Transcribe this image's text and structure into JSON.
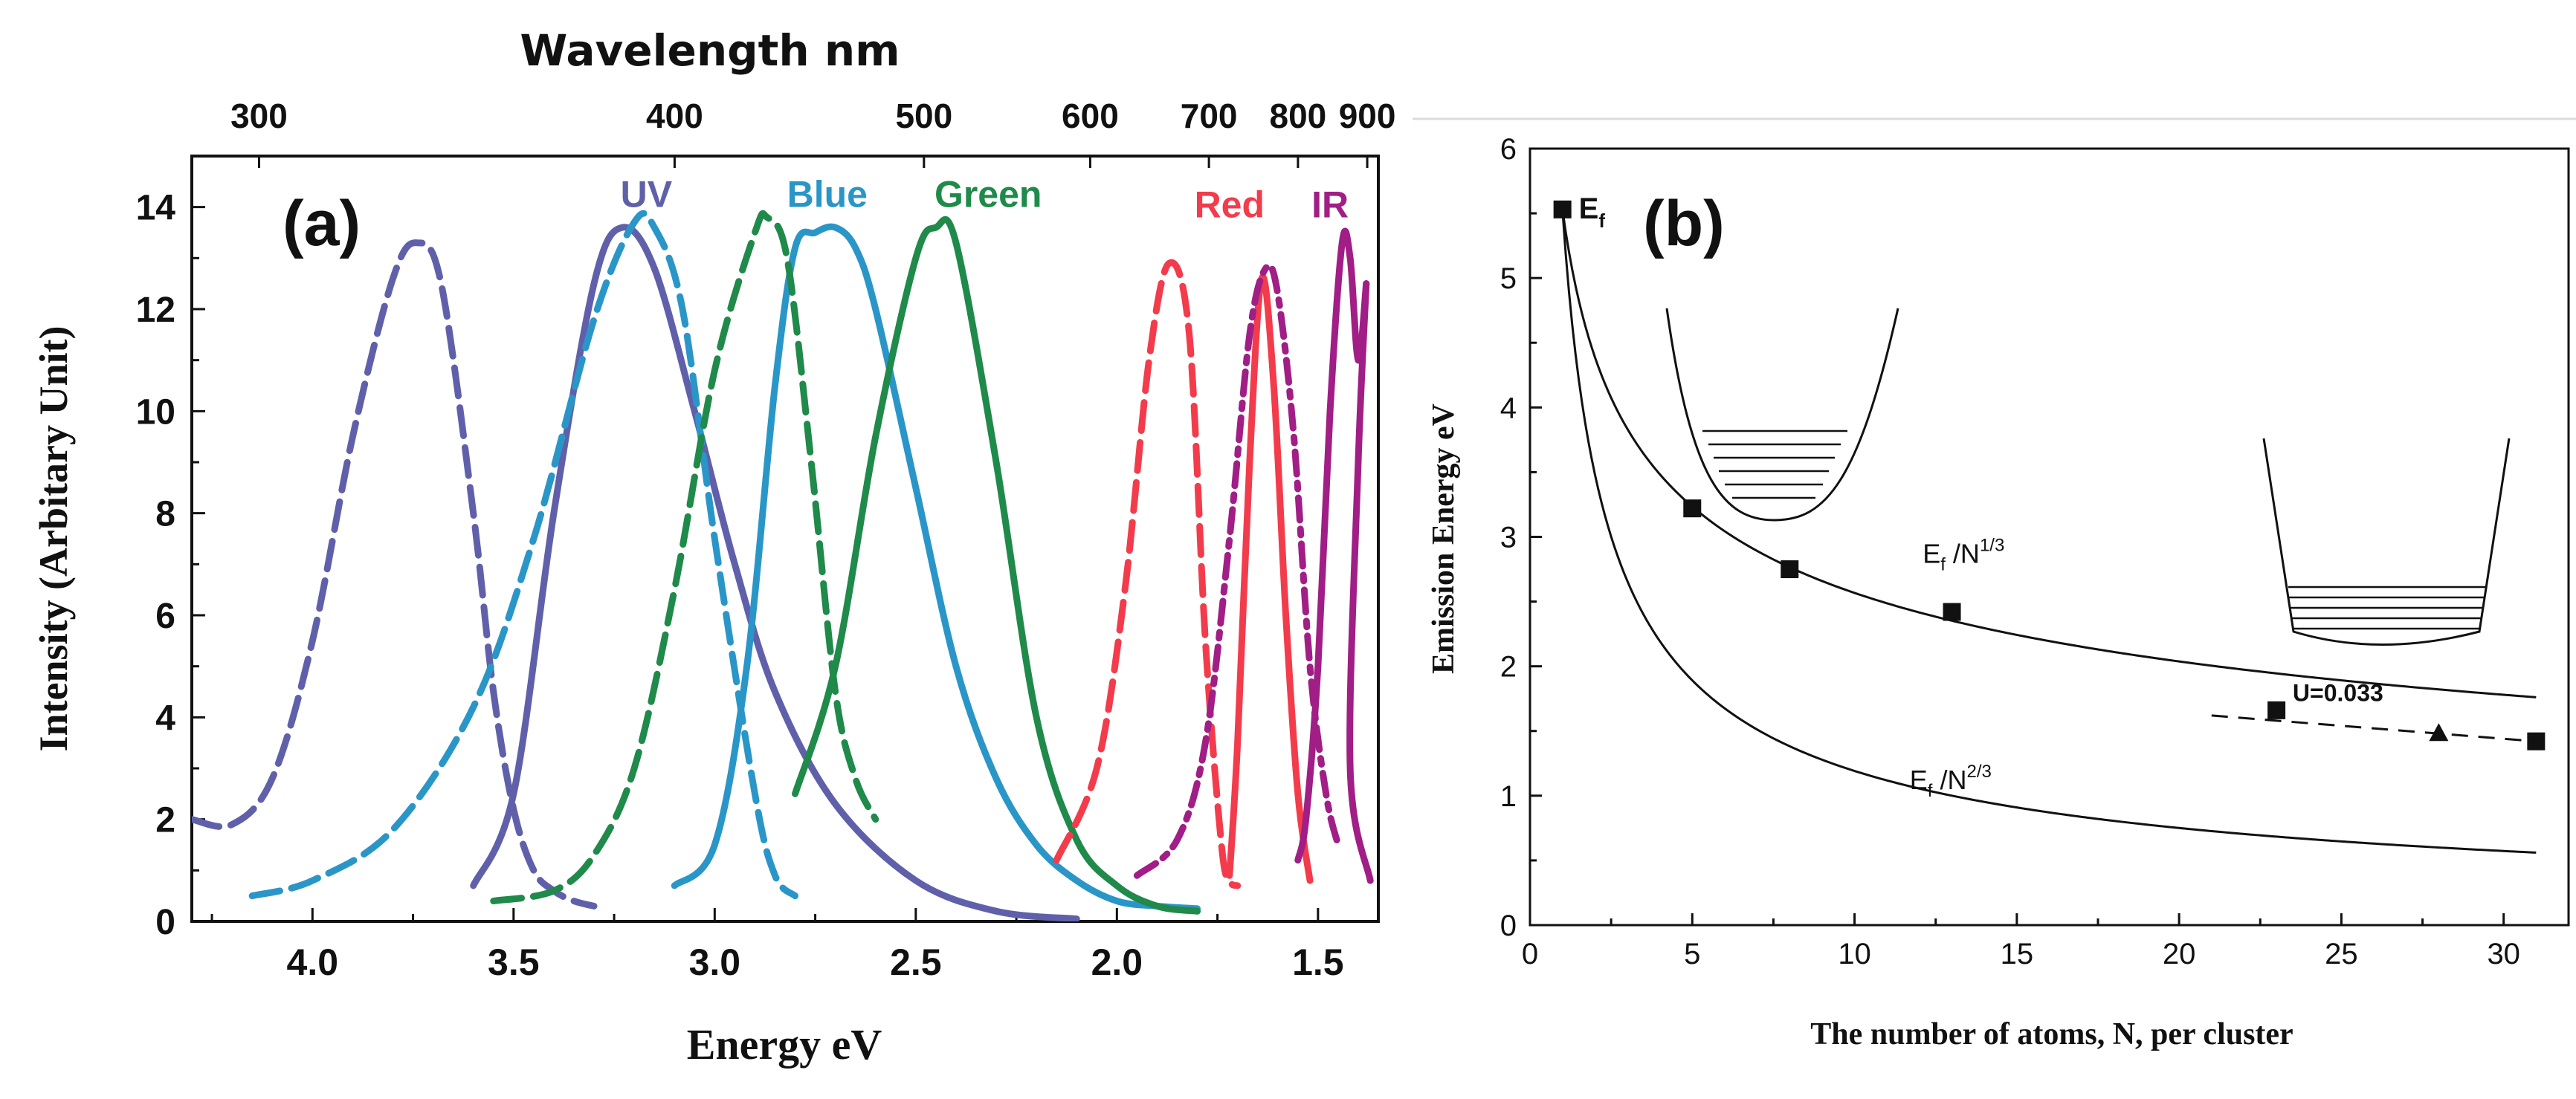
{
  "chart_data": [
    {
      "type": "line",
      "panel_label": "(a)",
      "top_axis_title": "Wavelength nm",
      "top_ticks": [
        "300",
        "400",
        "500",
        "600",
        "700",
        "800",
        "900"
      ],
      "top_tick_values_nm": [
        300,
        400,
        500,
        600,
        700,
        800,
        900
      ],
      "xlabel": "Energy eV",
      "ylabel": "Intensity (Arbitary Unit)",
      "xlim": [
        4.3,
        1.35
      ],
      "ylim": [
        0,
        15
      ],
      "xticks": [
        "4.0",
        "3.5",
        "3.0",
        "2.5",
        "2.0",
        "1.5"
      ],
      "xtick_values": [
        4.0,
        3.5,
        3.0,
        2.5,
        2.0,
        1.5
      ],
      "yticks": [
        "0",
        "2",
        "4",
        "6",
        "8",
        "10",
        "12",
        "14"
      ],
      "ytick_values": [
        0,
        2,
        4,
        6,
        8,
        10,
        12,
        14
      ],
      "series": [
        {
          "name": "UV",
          "style": "dashed",
          "color": "#6060aa",
          "x": [
            4.3,
            4.2,
            4.1,
            4.0,
            3.9,
            3.8,
            3.74,
            3.68,
            3.6,
            3.55,
            3.5,
            3.45,
            3.4,
            3.35,
            3.3
          ],
          "y": [
            2.0,
            1.9,
            2.8,
            5.5,
            9.5,
            12.6,
            13.3,
            12.5,
            8.0,
            4.5,
            2.2,
            1.0,
            0.6,
            0.4,
            0.3
          ]
        },
        {
          "name": "UV",
          "style": "solid",
          "color": "#6060aa",
          "x": [
            3.6,
            3.5,
            3.4,
            3.3,
            3.23,
            3.15,
            3.05,
            2.95,
            2.85,
            2.7,
            2.5,
            2.3,
            2.1
          ],
          "y": [
            0.7,
            2.5,
            8.0,
            12.5,
            13.6,
            12.8,
            10.0,
            7.0,
            4.5,
            2.3,
            0.8,
            0.2,
            0.05
          ]
        },
        {
          "name": "Blue",
          "style": "dashed",
          "color": "#2a96c8",
          "x": [
            4.15,
            4.0,
            3.8,
            3.6,
            3.45,
            3.3,
            3.2,
            3.15,
            3.08,
            3.0,
            2.9,
            2.85,
            2.8
          ],
          "y": [
            0.5,
            0.8,
            1.8,
            4.2,
            7.5,
            11.8,
            13.7,
            13.6,
            12.0,
            7.5,
            2.5,
            0.9,
            0.5
          ]
        },
        {
          "name": "Blue",
          "style": "solid",
          "color": "#2a96c8",
          "x": [
            3.1,
            3.0,
            2.92,
            2.85,
            2.8,
            2.75,
            2.7,
            2.65,
            2.6,
            2.5,
            2.4,
            2.3,
            2.2,
            2.1,
            2.0,
            1.9,
            1.8
          ],
          "y": [
            0.7,
            1.5,
            5.0,
            10.5,
            13.2,
            13.5,
            13.6,
            13.2,
            12.0,
            8.5,
            5.0,
            2.8,
            1.5,
            0.8,
            0.4,
            0.3,
            0.25
          ]
        },
        {
          "name": "Green",
          "style": "dashed",
          "color": "#1f8a4a",
          "x": [
            3.55,
            3.4,
            3.3,
            3.2,
            3.1,
            3.0,
            2.9,
            2.87,
            2.82,
            2.76,
            2.7,
            2.65,
            2.6
          ],
          "y": [
            0.4,
            0.6,
            1.3,
            3.0,
            6.5,
            10.8,
            13.5,
            13.8,
            13.0,
            9.0,
            4.5,
            2.8,
            2.0
          ]
        },
        {
          "name": "Green",
          "style": "solid",
          "color": "#1f8a4a",
          "x": [
            2.8,
            2.7,
            2.6,
            2.5,
            2.45,
            2.4,
            2.3,
            2.2,
            2.1,
            2.0,
            1.9,
            1.8
          ],
          "y": [
            2.5,
            5.0,
            9.5,
            13.0,
            13.6,
            13.3,
            9.0,
            4.0,
            1.6,
            0.7,
            0.3,
            0.2
          ]
        },
        {
          "name": "Red",
          "style": "dashed",
          "color": "#f23c4c",
          "x": [
            2.15,
            2.05,
            1.98,
            1.92,
            1.87,
            1.82,
            1.78,
            1.74,
            1.72,
            1.7
          ],
          "y": [
            1.2,
            3.0,
            6.5,
            11.0,
            12.9,
            11.5,
            5.5,
            1.5,
            0.8,
            0.7
          ]
        },
        {
          "name": "Red",
          "style": "solid",
          "color": "#f23c4c",
          "x": [
            1.72,
            1.7,
            1.67,
            1.64,
            1.61,
            1.58,
            1.55,
            1.52
          ],
          "y": [
            0.9,
            3.5,
            9.0,
            12.6,
            10.5,
            6.0,
            2.5,
            0.8
          ]
        },
        {
          "name": "IR",
          "style": "dashdot",
          "color": "#a01e86",
          "x": [
            1.95,
            1.85,
            1.78,
            1.72,
            1.67,
            1.63,
            1.6,
            1.56,
            1.52,
            1.48,
            1.45
          ],
          "y": [
            0.9,
            1.6,
            3.5,
            7.5,
            11.5,
            12.8,
            12.3,
            9.5,
            5.0,
            2.5,
            1.5
          ]
        },
        {
          "name": "IR",
          "style": "solid",
          "color": "#a01e86",
          "x": [
            1.55,
            1.53,
            1.5,
            1.47,
            1.44,
            1.42,
            1.4,
            1.38
          ],
          "y": [
            1.2,
            2.0,
            5.0,
            10.0,
            13.3,
            13.0,
            11.0,
            12.5
          ]
        },
        {
          "name": "IR",
          "style": "solid",
          "color": "#a01e86",
          "x": [
            1.38,
            1.4,
            1.42,
            1.37
          ],
          "y": [
            12.5,
            9.0,
            3.0,
            0.8
          ]
        }
      ],
      "annotations": [
        {
          "text": "UV",
          "color": "#6060aa",
          "x": 3.17,
          "y": 14.0
        },
        {
          "text": "Blue",
          "color": "#2a96c8",
          "x": 2.72,
          "y": 14.0
        },
        {
          "text": "Green",
          "color": "#1f8a4a",
          "x": 2.32,
          "y": 14.0
        },
        {
          "text": "Red",
          "color": "#f23c4c",
          "x": 1.72,
          "y": 13.8
        },
        {
          "text": "IR",
          "color": "#a01e86",
          "x": 1.47,
          "y": 13.8
        }
      ]
    },
    {
      "type": "line",
      "panel_label": "(b)",
      "xlabel": "The number of atoms, N, per cluster",
      "ylabel": "Emission Energy eV",
      "xlim": [
        0,
        32
      ],
      "ylim": [
        0,
        6
      ],
      "xticks": [
        "0",
        "5",
        "10",
        "15",
        "20",
        "25",
        "30"
      ],
      "xtick_values": [
        0,
        5,
        10,
        15,
        20,
        25,
        30
      ],
      "yticks": [
        "0",
        "1",
        "2",
        "3",
        "4",
        "5",
        "6"
      ],
      "ytick_values": [
        0,
        1,
        2,
        3,
        4,
        5,
        6
      ],
      "ef": 5.53,
      "curves": [
        {
          "name": "Ef/N^(1/3)",
          "label_main": "E",
          "label_sub": "f",
          "label_rest": " /N",
          "label_sup": "1/3",
          "exponent": 0.3333,
          "x_range": [
            1,
            31
          ]
        },
        {
          "name": "Ef/N^(2/3)",
          "label_main": "E",
          "label_sub": "f",
          "label_rest": " /N",
          "label_sup": "2/3",
          "exponent": 0.6667,
          "x_range": [
            1,
            31
          ]
        }
      ],
      "dashed_line": {
        "label": "U=0.033",
        "x": [
          21,
          31
        ],
        "y": [
          1.62,
          1.42
        ]
      },
      "points_square": [
        {
          "x": 1,
          "y": 5.53
        },
        {
          "x": 5,
          "y": 3.22
        },
        {
          "x": 8,
          "y": 2.75
        },
        {
          "x": 13,
          "y": 2.42
        },
        {
          "x": 23,
          "y": 1.66
        },
        {
          "x": 31,
          "y": 1.42
        }
      ],
      "points_triangle": [
        {
          "x": 28,
          "y": 1.48
        }
      ],
      "point_label": {
        "main": "E",
        "sub": "f"
      },
      "insets": [
        "parabolic-well",
        "square-well"
      ]
    }
  ]
}
